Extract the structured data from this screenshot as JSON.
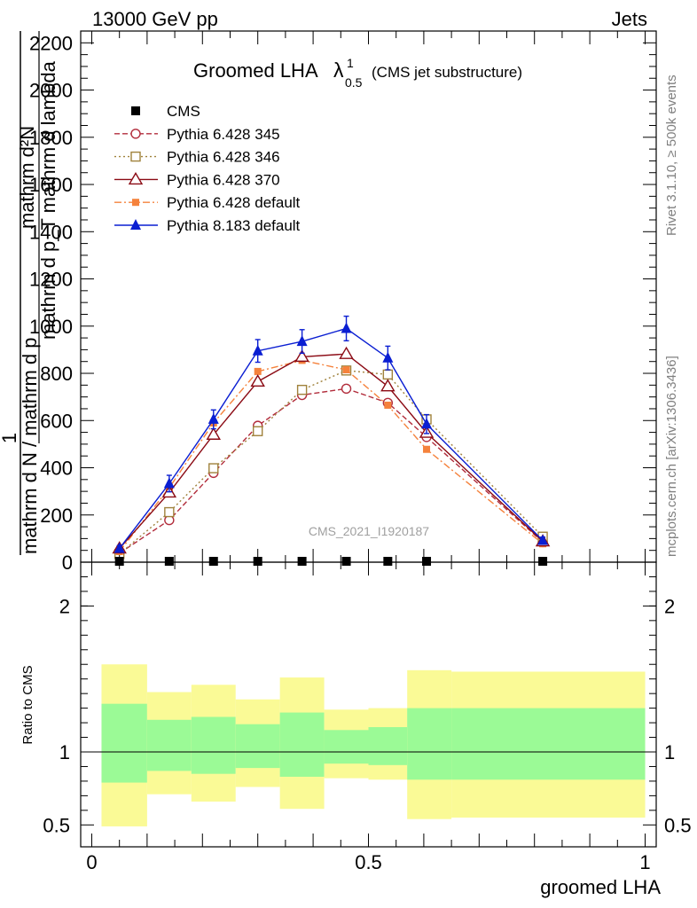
{
  "header": {
    "left": "13000 GeV pp",
    "right": "Jets"
  },
  "title": {
    "main": "Groomed LHA",
    "lambda": "λ",
    "sup": "1",
    "sub": "0.5",
    "note": "(CMS jet substructure)"
  },
  "side_labels": {
    "rivet": "Rivet 3.1.10, ≥ 500k events",
    "mcplots": "mcplots.cern.ch [arXiv:1306.3436]"
  },
  "watermark": "CMS_2021_I1920187",
  "ylabel_main": {
    "line1": "1",
    "line2_num": "mathrm d N / mathrm d p",
    "line2_num_sub": "T",
    "line2_den": "mathrm d p",
    "line2_den_sub": "T",
    "line2_tail": " mathrm d lambda",
    "num_label": "mathrm d²N",
    "den_label": "mathrm d p_T mathrm d lambda"
  },
  "ylabel_ratio": "Ratio to CMS",
  "xlabel": "groomed LHA",
  "colors": {
    "cms": "#000000",
    "p345": "#b22d3c",
    "p346": "#a0823c",
    "p370": "#8b0a14",
    "p6def": "#f5823c",
    "p8def": "#0a1ed2",
    "band_inner": "#9bfa96",
    "band_outer": "#fafa96"
  },
  "chart_data": {
    "type": "line",
    "xlim": [
      -0.02,
      1.02
    ],
    "ylim_main": [
      0,
      2250
    ],
    "ylim_ratio": [
      0.35,
      2.3
    ],
    "x_ticks": [
      0,
      0.5,
      1
    ],
    "x_tick_labels": [
      "0",
      "0.5",
      "1"
    ],
    "y_ticks_main": [
      0,
      200,
      400,
      600,
      800,
      1000,
      1200,
      1400,
      1600,
      1800,
      2000,
      2200
    ],
    "y_tick_labels_main": [
      "0",
      "200",
      "400",
      "600",
      "800",
      "1000",
      "1200",
      "1400",
      "1600",
      "1800",
      "2000",
      "2200"
    ],
    "y_ticks_ratio": [
      0.5,
      1,
      2
    ],
    "y_tick_labels_ratio": [
      "0.5",
      "1",
      "2"
    ],
    "x": [
      0.05,
      0.14,
      0.22,
      0.3,
      0.38,
      0.46,
      0.535,
      0.605,
      0.815
    ],
    "bins": [
      [
        0,
        0.1
      ],
      [
        0.1,
        0.18
      ],
      [
        0.18,
        0.26
      ],
      [
        0.26,
        0.34
      ],
      [
        0.34,
        0.42
      ],
      [
        0.42,
        0.5
      ],
      [
        0.5,
        0.57
      ],
      [
        0.57,
        0.65
      ],
      [
        0.65,
        1.0
      ]
    ],
    "series": [
      {
        "name": "CMS",
        "key": "cms",
        "marker": "square-filled",
        "dash": "none",
        "values": [
          0,
          0,
          0,
          0,
          0,
          0,
          0,
          0,
          0
        ]
      },
      {
        "name": "Pythia 6.428 345",
        "key": "p345",
        "marker": "circle-open",
        "dash": "6,3",
        "values": [
          38,
          178,
          378,
          578,
          708,
          735,
          675,
          530,
          85
        ]
      },
      {
        "name": "Pythia 6.428 346",
        "key": "p346",
        "marker": "square-open",
        "dash": "2,3",
        "values": [
          35,
          212,
          398,
          555,
          730,
          812,
          795,
          605,
          108
        ]
      },
      {
        "name": "Pythia 6.428 370",
        "key": "p370",
        "marker": "triangle-open",
        "dash": "none",
        "values": [
          58,
          295,
          540,
          765,
          870,
          882,
          745,
          548,
          88
        ]
      },
      {
        "name": "Pythia 6.428 default",
        "key": "p6def",
        "marker": "square-small",
        "dash": "8,3,2,3",
        "values": [
          45,
          315,
          590,
          808,
          855,
          815,
          665,
          478,
          78
        ]
      },
      {
        "name": "Pythia 8.183 default",
        "key": "p8def",
        "marker": "triangle-filled",
        "dash": "none",
        "values": [
          58,
          333,
          605,
          895,
          935,
          990,
          865,
          585,
          92
        ],
        "errors": [
          12,
          35,
          40,
          48,
          50,
          52,
          50,
          40,
          14
        ]
      }
    ],
    "ratio_bands": {
      "inner_low": [
        0.79,
        0.87,
        0.85,
        0.89,
        0.83,
        0.92,
        0.91,
        0.81,
        0.81
      ],
      "inner_high": [
        1.33,
        1.22,
        1.24,
        1.19,
        1.27,
        1.15,
        1.17,
        1.3,
        1.3
      ],
      "outer_low": [
        0.49,
        0.71,
        0.66,
        0.76,
        0.61,
        0.82,
        0.81,
        0.54,
        0.55
      ],
      "outer_high": [
        1.6,
        1.41,
        1.46,
        1.36,
        1.51,
        1.29,
        1.3,
        1.56,
        1.55
      ]
    }
  }
}
